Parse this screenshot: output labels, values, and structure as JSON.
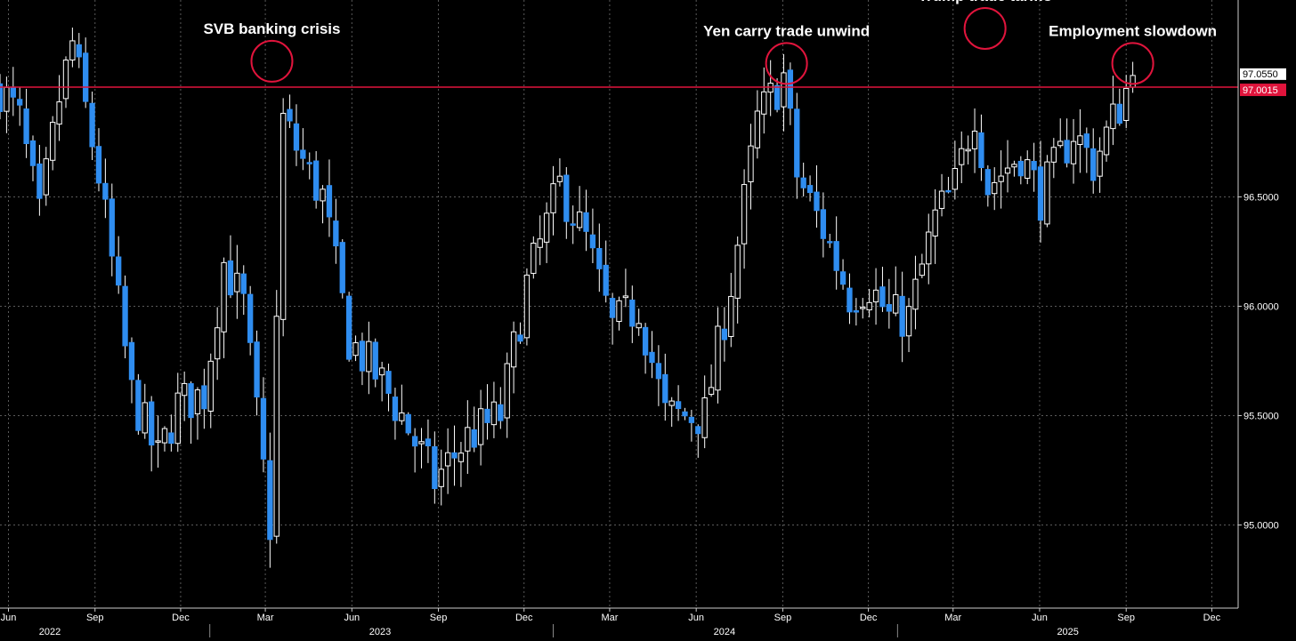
{
  "chart_data": {
    "type": "candlestick",
    "interval": "weekly",
    "grid": true,
    "ylim": [
      94.62,
      97.4
    ],
    "xlim": [
      "2022-05-23",
      "2025-12-29"
    ],
    "up_color": "#ffffff",
    "down_color": "#2f8df0",
    "reference_line": {
      "value": 97.0015,
      "label": "97.0015",
      "color": "#e0143c"
    },
    "last_price": {
      "value": 97.055,
      "label": "97.0550",
      "bg_color": "#ffffff"
    },
    "y_ticks": [
      {
        "value": 95.0,
        "label": "95.0000"
      },
      {
        "value": 95.5,
        "label": "95.5000"
      },
      {
        "value": 96.0,
        "label": "96.0000"
      },
      {
        "value": 96.5,
        "label": "96.5000"
      }
    ],
    "x_ticks": [
      {
        "date": "2022-06-01",
        "label": "Jun"
      },
      {
        "date": "2022-09-01",
        "label": "Sep"
      },
      {
        "date": "2022-12-01",
        "label": "Dec"
      },
      {
        "date": "2023-03-01",
        "label": "Mar"
      },
      {
        "date": "2023-06-01",
        "label": "Jun"
      },
      {
        "date": "2023-09-01",
        "label": "Sep"
      },
      {
        "date": "2023-12-01",
        "label": "Dec"
      },
      {
        "date": "2024-03-01",
        "label": "Mar"
      },
      {
        "date": "2024-06-01",
        "label": "Jun"
      },
      {
        "date": "2024-09-01",
        "label": "Sep"
      },
      {
        "date": "2024-12-01",
        "label": "Dec"
      },
      {
        "date": "2025-03-01",
        "label": "Mar"
      },
      {
        "date": "2025-06-01",
        "label": "Jun"
      },
      {
        "date": "2025-09-01",
        "label": "Sep"
      },
      {
        "date": "2025-12-01",
        "label": "Dec"
      }
    ],
    "year_labels": [
      {
        "date": "2022-07-15",
        "label": "2022"
      },
      {
        "date": "2023-07-01",
        "label": "2023"
      },
      {
        "date": "2024-07-01",
        "label": "2024"
      },
      {
        "date": "2025-07-01",
        "label": "2025"
      }
    ],
    "year_dividers": [
      "2023-01-01",
      "2024-01-01",
      "2025-01-01"
    ],
    "annotations": [
      {
        "text": "SVB banking crisis",
        "date": "2023-03-08",
        "value": 97.12
      },
      {
        "text": "Yen carry trade unwind",
        "date": "2024-09-05",
        "value": 97.11
      },
      {
        "text": "Trump trade tariffs",
        "date": "2025-04-04",
        "value": 97.27
      },
      {
        "text": "Employment slowdown",
        "date": "2025-09-08",
        "value": 97.11
      }
    ],
    "keyframes": [
      [
        "2022-05-23",
        97.0
      ],
      [
        "2022-06-13",
        96.85
      ],
      [
        "2022-07-04",
        96.4
      ],
      [
        "2022-07-25",
        96.95
      ],
      [
        "2022-08-08",
        97.2
      ],
      [
        "2022-09-05",
        96.6
      ],
      [
        "2022-10-10",
        95.6
      ],
      [
        "2022-11-07",
        95.3
      ],
      [
        "2022-11-28",
        95.55
      ],
      [
        "2022-12-26",
        95.6
      ],
      [
        "2023-01-16",
        96.2
      ],
      [
        "2023-02-06",
        96.0
      ],
      [
        "2023-03-06",
        95.0
      ],
      [
        "2023-03-20",
        96.85
      ],
      [
        "2023-04-17",
        96.6
      ],
      [
        "2023-05-01",
        96.5
      ],
      [
        "2023-05-29",
        95.85
      ],
      [
        "2023-07-03",
        95.65
      ],
      [
        "2023-07-24",
        95.5
      ],
      [
        "2023-08-28",
        95.2
      ],
      [
        "2023-10-02",
        95.4
      ],
      [
        "2023-11-06",
        95.5
      ],
      [
        "2023-12-04",
        96.1
      ],
      [
        "2024-01-08",
        96.55
      ],
      [
        "2024-02-05",
        96.3
      ],
      [
        "2024-03-04",
        95.9
      ],
      [
        "2024-04-01",
        96.0
      ],
      [
        "2024-04-29",
        95.5
      ],
      [
        "2024-05-20",
        95.5
      ],
      [
        "2024-06-10",
        95.5
      ],
      [
        "2024-07-08",
        96.1
      ],
      [
        "2024-08-05",
        96.85
      ],
      [
        "2024-09-02",
        97.05
      ],
      [
        "2024-09-16",
        96.6
      ],
      [
        "2024-10-14",
        96.35
      ],
      [
        "2024-11-11",
        96.05
      ],
      [
        "2024-12-02",
        96.1
      ],
      [
        "2024-12-23",
        95.95
      ],
      [
        "2025-01-13",
        95.95
      ],
      [
        "2025-02-10",
        96.4
      ],
      [
        "2025-03-03",
        96.55
      ],
      [
        "2025-03-24",
        96.9
      ],
      [
        "2025-04-07",
        96.55
      ],
      [
        "2025-05-12",
        96.7
      ],
      [
        "2025-06-02",
        96.5
      ],
      [
        "2025-07-07",
        96.8
      ],
      [
        "2025-07-28",
        96.65
      ],
      [
        "2025-08-18",
        96.85
      ],
      [
        "2025-09-08",
        97.055
      ]
    ]
  }
}
